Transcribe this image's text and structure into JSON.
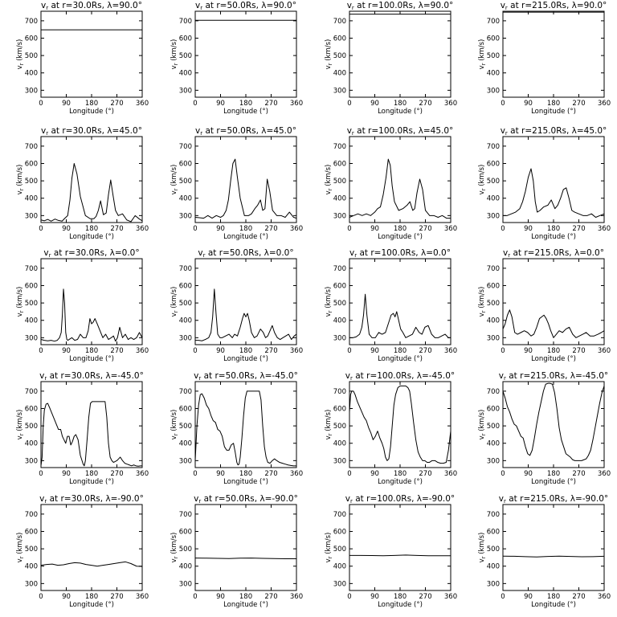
{
  "figure": {
    "xlabel": "Longitude (°)",
    "ylabel": "v$r (km/s)",
    "xticks": [
      0,
      90,
      180,
      270,
      360
    ],
    "yticks": [
      300,
      400,
      500,
      600,
      700
    ],
    "xlim": [
      0,
      360
    ],
    "ylim": [
      260,
      755
    ],
    "line_color": "#000000"
  },
  "chart_data": [
    {
      "type": "line",
      "title": "v$r at r=30.0Rs, λ=90.0°",
      "x": [
        0,
        360
      ],
      "y": [
        648,
        648
      ]
    },
    {
      "type": "line",
      "title": "v$r at r=50.0Rs, λ=90.0°",
      "x": [
        0,
        360
      ],
      "y": [
        703,
        703
      ]
    },
    {
      "type": "line",
      "title": "v$r at r=100.0Rs, λ=90.0°",
      "x": [
        0,
        360
      ],
      "y": [
        738,
        738
      ]
    },
    {
      "type": "line",
      "title": "v$r at r=215.0Rs, λ=90.0°",
      "x": [
        0,
        360
      ],
      "y": [
        750,
        750
      ]
    },
    {
      "type": "line",
      "title": "v$r at r=30.0Rs, λ=45.0°",
      "x": [
        0,
        12,
        24,
        36,
        50,
        62,
        75,
        85,
        95,
        103,
        110,
        118,
        128,
        140,
        158,
        175,
        188,
        196,
        204,
        212,
        222,
        232,
        240,
        248,
        256,
        265,
        275,
        290,
        305,
        320,
        335,
        350,
        360
      ],
      "y": [
        275,
        270,
        278,
        268,
        280,
        272,
        268,
        285,
        300,
        390,
        515,
        600,
        540,
        410,
        300,
        282,
        282,
        295,
        330,
        385,
        305,
        315,
        420,
        505,
        420,
        330,
        300,
        310,
        275,
        265,
        300,
        280,
        270
      ]
    },
    {
      "type": "line",
      "title": "v$r at r=50.0Rs, λ=45.0°",
      "x": [
        0,
        15,
        30,
        45,
        60,
        75,
        90,
        100,
        110,
        118,
        126,
        134,
        142,
        150,
        160,
        175,
        190,
        200,
        212,
        222,
        232,
        240,
        248,
        256,
        265,
        275,
        290,
        305,
        320,
        335,
        350,
        360
      ],
      "y": [
        290,
        288,
        285,
        300,
        285,
        300,
        290,
        300,
        330,
        390,
        500,
        600,
        625,
        520,
        400,
        300,
        300,
        310,
        340,
        360,
        390,
        330,
        340,
        510,
        440,
        330,
        300,
        300,
        290,
        320,
        290,
        285
      ]
    },
    {
      "type": "line",
      "title": "v$r at r=100.0Rs, λ=45.0°",
      "x": [
        0,
        15,
        30,
        45,
        60,
        75,
        90,
        100,
        110,
        120,
        130,
        138,
        145,
        152,
        160,
        175,
        190,
        205,
        215,
        225,
        232,
        240,
        250,
        260,
        270,
        285,
        300,
        315,
        330,
        345,
        360
      ],
      "y": [
        290,
        300,
        310,
        300,
        310,
        300,
        320,
        340,
        350,
        420,
        520,
        625,
        590,
        470,
        380,
        330,
        340,
        360,
        380,
        330,
        340,
        430,
        510,
        450,
        330,
        300,
        300,
        290,
        300,
        285,
        285
      ]
    },
    {
      "type": "line",
      "title": "v$r at r=215.0Rs, λ=45.0°",
      "x": [
        0,
        15,
        30,
        45,
        60,
        70,
        80,
        90,
        100,
        108,
        115,
        122,
        132,
        145,
        160,
        172,
        185,
        195,
        205,
        215,
        225,
        235,
        245,
        255,
        270,
        285,
        300,
        315,
        330,
        345,
        360
      ],
      "y": [
        300,
        300,
        310,
        320,
        340,
        380,
        440,
        520,
        570,
        500,
        380,
        320,
        330,
        350,
        360,
        390,
        340,
        360,
        400,
        450,
        460,
        400,
        330,
        320,
        310,
        300,
        300,
        310,
        290,
        300,
        310
      ]
    },
    {
      "type": "line",
      "title": "v$r at r=30.0Rs, λ=0.0°",
      "x": [
        0,
        12,
        24,
        36,
        48,
        58,
        66,
        72,
        76,
        80,
        84,
        88,
        92,
        96,
        100,
        110,
        120,
        130,
        140,
        150,
        160,
        168,
        174,
        180,
        186,
        192,
        200,
        210,
        220,
        230,
        240,
        250,
        258,
        265,
        272,
        280,
        290,
        300,
        310,
        320,
        330,
        340,
        350,
        360
      ],
      "y": [
        290,
        285,
        282,
        285,
        280,
        285,
        300,
        330,
        430,
        580,
        500,
        330,
        290,
        285,
        290,
        300,
        285,
        290,
        320,
        300,
        300,
        340,
        410,
        380,
        390,
        410,
        380,
        340,
        300,
        320,
        290,
        300,
        310,
        280,
        300,
        360,
        300,
        320,
        290,
        300,
        290,
        300,
        330,
        300
      ]
    },
    {
      "type": "line",
      "title": "v$r at r=50.0Rs, λ=0.0°",
      "x": [
        0,
        12,
        24,
        36,
        48,
        56,
        62,
        68,
        74,
        80,
        88,
        96,
        108,
        120,
        132,
        140,
        150,
        160,
        168,
        174,
        180,
        186,
        192,
        200,
        210,
        220,
        232,
        242,
        250,
        258,
        266,
        274,
        282,
        292,
        302,
        312,
        322,
        332,
        342,
        352,
        360
      ],
      "y": [
        285,
        285,
        282,
        290,
        300,
        330,
        420,
        580,
        440,
        320,
        300,
        300,
        310,
        320,
        300,
        320,
        310,
        360,
        410,
        440,
        420,
        440,
        400,
        330,
        300,
        310,
        350,
        330,
        300,
        310,
        340,
        370,
        330,
        300,
        290,
        300,
        310,
        320,
        290,
        310,
        320
      ]
    },
    {
      "type": "line",
      "title": "v$r at r=100.0Rs, λ=0.0°",
      "x": [
        0,
        12,
        24,
        36,
        44,
        50,
        56,
        62,
        70,
        80,
        92,
        104,
        116,
        128,
        140,
        148,
        156,
        162,
        168,
        175,
        182,
        190,
        200,
        212,
        224,
        236,
        248,
        258,
        268,
        280,
        292,
        304,
        316,
        328,
        340,
        352,
        360
      ],
      "y": [
        300,
        300,
        305,
        320,
        360,
        430,
        550,
        430,
        320,
        300,
        300,
        330,
        320,
        330,
        390,
        430,
        440,
        420,
        450,
        400,
        350,
        330,
        300,
        310,
        320,
        360,
        330,
        320,
        360,
        370,
        320,
        300,
        300,
        310,
        320,
        300,
        300
      ]
    },
    {
      "type": "line",
      "title": "v$r at r=215.0Rs, λ=0.0°",
      "x": [
        0,
        8,
        16,
        24,
        32,
        42,
        52,
        64,
        76,
        88,
        100,
        110,
        120,
        130,
        138,
        146,
        154,
        162,
        170,
        180,
        190,
        200,
        212,
        224,
        236,
        248,
        260,
        272,
        284,
        296,
        310,
        324,
        338,
        350,
        360
      ],
      "y": [
        350,
        380,
        430,
        460,
        420,
        330,
        320,
        330,
        340,
        330,
        310,
        320,
        360,
        410,
        420,
        430,
        410,
        380,
        340,
        300,
        320,
        340,
        330,
        350,
        360,
        320,
        300,
        310,
        320,
        330,
        310,
        310,
        320,
        330,
        340
      ]
    },
    {
      "type": "line",
      "title": "v$r at r=30.0Rs, λ=-45.0°",
      "x": [
        0,
        4,
        8,
        12,
        18,
        24,
        32,
        42,
        52,
        62,
        70,
        76,
        82,
        88,
        94,
        100,
        106,
        112,
        118,
        124,
        132,
        140,
        146,
        150,
        154,
        158,
        164,
        170,
        176,
        182,
        190,
        200,
        210,
        220,
        228,
        234,
        240,
        246,
        252,
        258,
        264,
        270,
        276,
        282,
        290,
        298,
        306,
        314,
        322,
        330,
        338,
        346,
        354,
        360
      ],
      "y": [
        270,
        320,
        500,
        590,
        625,
        630,
        600,
        560,
        520,
        480,
        480,
        440,
        420,
        400,
        440,
        440,
        390,
        410,
        440,
        450,
        420,
        330,
        300,
        280,
        270,
        300,
        420,
        550,
        630,
        640,
        640,
        640,
        640,
        640,
        640,
        550,
        400,
        320,
        300,
        290,
        295,
        300,
        310,
        320,
        300,
        285,
        280,
        275,
        270,
        275,
        270,
        268,
        270,
        270
      ]
    },
    {
      "type": "line",
      "title": "v$r at r=50.0Rs, λ=-45.0°",
      "x": [
        0,
        6,
        12,
        18,
        24,
        32,
        40,
        48,
        56,
        64,
        72,
        80,
        88,
        96,
        104,
        112,
        120,
        128,
        136,
        142,
        148,
        152,
        156,
        160,
        166,
        172,
        178,
        184,
        190,
        200,
        210,
        220,
        228,
        234,
        240,
        246,
        252,
        258,
        266,
        274,
        282,
        290,
        300,
        310,
        320,
        330,
        340,
        350,
        360
      ],
      "y": [
        300,
        500,
        620,
        680,
        685,
        660,
        620,
        600,
        560,
        530,
        520,
        480,
        470,
        440,
        380,
        360,
        360,
        390,
        400,
        350,
        290,
        275,
        280,
        320,
        430,
        560,
        660,
        700,
        700,
        700,
        700,
        700,
        700,
        650,
        500,
        380,
        320,
        290,
        285,
        300,
        310,
        300,
        290,
        285,
        280,
        275,
        272,
        270,
        270
      ]
    },
    {
      "type": "line",
      "title": "v$r at r=100.0Rs, λ=-45.0°",
      "x": [
        0,
        4,
        8,
        14,
        20,
        28,
        36,
        44,
        52,
        60,
        68,
        76,
        84,
        92,
        100,
        108,
        116,
        122,
        128,
        134,
        140,
        146,
        152,
        158,
        164,
        172,
        180,
        190,
        200,
        208,
        214,
        220,
        228,
        236,
        244,
        252,
        260,
        268,
        276,
        284,
        294,
        304,
        314,
        324,
        334,
        344,
        352,
        360
      ],
      "y": [
        580,
        680,
        700,
        700,
        680,
        640,
        610,
        580,
        550,
        530,
        490,
        460,
        420,
        440,
        470,
        430,
        400,
        370,
        320,
        300,
        310,
        380,
        500,
        620,
        680,
        720,
        730,
        730,
        730,
        720,
        700,
        630,
        520,
        420,
        350,
        320,
        300,
        300,
        290,
        290,
        300,
        300,
        290,
        285,
        285,
        290,
        360,
        470
      ]
    },
    {
      "type": "line",
      "title": "v$r at r=215.0Rs, λ=-45.0°",
      "x": [
        0,
        8,
        16,
        24,
        32,
        40,
        48,
        56,
        64,
        72,
        80,
        88,
        96,
        104,
        112,
        120,
        128,
        136,
        144,
        152,
        160,
        168,
        176,
        184,
        192,
        200,
        208,
        216,
        224,
        232,
        240,
        248,
        256,
        264,
        272,
        280,
        288,
        296,
        304,
        312,
        320,
        328,
        336,
        344,
        352,
        360
      ],
      "y": [
        700,
        660,
        610,
        580,
        540,
        510,
        500,
        470,
        440,
        430,
        380,
        340,
        330,
        360,
        430,
        510,
        580,
        640,
        700,
        740,
        745,
        745,
        740,
        690,
        600,
        490,
        420,
        380,
        340,
        330,
        320,
        305,
        300,
        300,
        300,
        300,
        305,
        310,
        330,
        360,
        420,
        490,
        560,
        630,
        690,
        730
      ]
    },
    {
      "type": "line",
      "title": "v$r at r=30.0Rs, λ=-90.0°",
      "x": [
        0,
        20,
        40,
        60,
        80,
        100,
        120,
        140,
        160,
        180,
        200,
        220,
        240,
        260,
        280,
        300,
        320,
        340,
        360
      ],
      "y": [
        405,
        410,
        412,
        405,
        408,
        415,
        420,
        418,
        410,
        405,
        400,
        405,
        410,
        415,
        420,
        425,
        415,
        400,
        398
      ]
    },
    {
      "type": "line",
      "title": "v$r at r=50.0Rs, λ=-90.0°",
      "x": [
        0,
        40,
        80,
        120,
        160,
        200,
        240,
        280,
        320,
        360
      ],
      "y": [
        447,
        446,
        445,
        444,
        446,
        447,
        445,
        444,
        443,
        443
      ]
    },
    {
      "type": "line",
      "title": "v$r at r=100.0Rs, λ=-90.0°",
      "x": [
        0,
        40,
        80,
        120,
        160,
        200,
        240,
        280,
        320,
        360
      ],
      "y": [
        462,
        462,
        461,
        460,
        462,
        464,
        462,
        460,
        460,
        460
      ]
    },
    {
      "type": "line",
      "title": "v$r at r=215.0Rs, λ=-90.0°",
      "x": [
        0,
        40,
        80,
        120,
        160,
        200,
        240,
        280,
        320,
        360
      ],
      "y": [
        458,
        457,
        455,
        453,
        456,
        458,
        456,
        454,
        455,
        457
      ]
    }
  ]
}
